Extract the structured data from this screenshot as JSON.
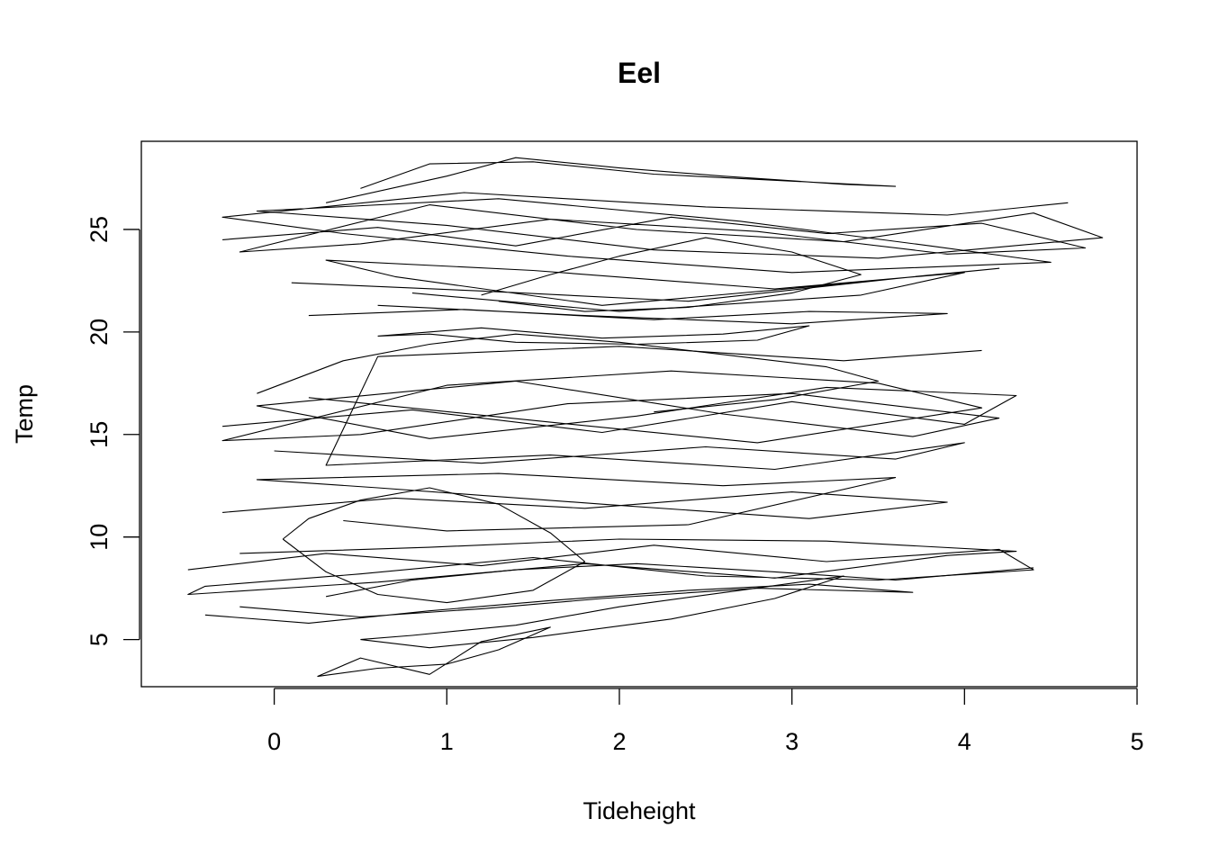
{
  "chart_data": {
    "type": "line",
    "title": "Eel",
    "xlabel": "Tideheight",
    "ylabel": "Temp",
    "xlim": [
      -0.77,
      5.0
    ],
    "ylim": [
      2.7,
      29.3
    ],
    "x_ticks": [
      0,
      1,
      2,
      3,
      4,
      5
    ],
    "y_ticks": [
      5,
      10,
      15,
      20,
      25
    ],
    "grid": false,
    "legend": "none",
    "line_color": "#000000",
    "series": [
      {
        "segments": [
          {
            "x": [
              -0.3,
              0.6,
              1.4,
              2.3,
              3.2,
              4.1,
              4.7,
              3.9,
              2.8,
              1.6,
              0.5,
              -0.2,
              0.9,
              2.1,
              3.3,
              4.4,
              4.8,
              3.5,
              2.2,
              1.0,
              -0.1,
              1.3,
              2.7,
              3.8,
              4.5,
              3.0,
              1.7,
              0.4,
              -0.3,
              1.1,
              2.5,
              3.9,
              4.6
            ],
            "y": [
              24.5,
              25.1,
              24.2,
              25.6,
              24.8,
              25.3,
              24.1,
              23.8,
              24.9,
              25.5,
              24.3,
              23.9,
              26.2,
              25.0,
              24.4,
              25.8,
              24.6,
              23.6,
              24.0,
              25.2,
              25.9,
              26.5,
              25.4,
              24.2,
              23.4,
              22.9,
              23.7,
              24.8,
              25.6,
              26.8,
              26.1,
              25.7,
              26.3
            ]
          },
          {
            "x": [
              0.1,
              1.2,
              2.4,
              3.6,
              4.2,
              3.1,
              1.9,
              0.7,
              0.3,
              1.5,
              2.9,
              4.0,
              3.4,
              2.0,
              0.8
            ],
            "y": [
              22.4,
              22.0,
              21.5,
              22.6,
              23.1,
              22.2,
              21.3,
              22.7,
              23.5,
              23.0,
              22.1,
              22.9,
              21.8,
              21.0,
              21.9
            ]
          },
          {
            "x": [
              0.3,
              1.0,
              1.4,
              2.0,
              2.6,
              3.3,
              3.6,
              2.9,
              2.2,
              1.5,
              0.9,
              0.5
            ],
            "y": [
              26.3,
              27.6,
              28.5,
              28.0,
              27.6,
              27.2,
              27.1,
              27.4,
              27.7,
              28.3,
              28.2,
              27.0
            ]
          },
          {
            "x": [
              0.2,
              1.1,
              2.2,
              3.1,
              3.9,
              3.0,
              1.8,
              0.6
            ],
            "y": [
              20.8,
              21.1,
              20.6,
              21.0,
              20.9,
              20.4,
              20.8,
              21.3
            ]
          },
          {
            "x": [
              -0.3,
              0.8,
              1.9,
              3.0,
              4.0,
              4.3,
              3.2,
              2.1,
              0.9,
              -0.1,
              1.4,
              2.6,
              3.7,
              4.2,
              3.0,
              1.7,
              0.5,
              -0.3,
              1.0,
              2.3,
              3.5,
              4.1,
              2.8,
              1.6,
              0.2
            ],
            "y": [
              15.4,
              16.2,
              15.1,
              16.6,
              15.5,
              16.9,
              17.3,
              15.9,
              14.8,
              16.4,
              17.6,
              16.0,
              14.9,
              15.8,
              17.0,
              16.5,
              15.0,
              14.7,
              17.4,
              18.1,
              17.5,
              16.3,
              14.6,
              15.6,
              16.8
            ]
          },
          {
            "x": [
              0.0,
              1.2,
              2.5,
              3.6,
              4.0,
              2.9,
              1.6,
              0.3,
              0.6,
              2.0,
              3.3,
              4.1
            ],
            "y": [
              14.2,
              13.6,
              14.4,
              13.8,
              14.6,
              13.3,
              14.0,
              13.5,
              18.8,
              19.3,
              18.6,
              19.1
            ]
          },
          {
            "x": [
              -0.3,
              0.7,
              1.8,
              3.0,
              3.9,
              3.1,
              1.9,
              0.6,
              -0.1,
              1.3,
              2.6,
              3.6,
              2.4,
              1.0,
              0.4
            ],
            "y": [
              11.2,
              11.9,
              11.4,
              12.2,
              11.7,
              10.9,
              11.6,
              12.4,
              12.8,
              13.1,
              12.5,
              12.9,
              10.6,
              10.3,
              10.8
            ]
          },
          {
            "x": [
              0.6,
              1.2,
              1.9,
              2.6,
              3.1,
              2.8,
              2.1,
              1.4,
              0.9,
              0.6
            ],
            "y": [
              19.8,
              20.2,
              19.7,
              19.9,
              20.3,
              19.6,
              19.4,
              19.5,
              19.9,
              19.8
            ]
          },
          {
            "x": [
              -0.5,
              0.3,
              1.2,
              2.2,
              3.2,
              4.2,
              4.4,
              3.5,
              2.5,
              1.5,
              0.5,
              -0.4,
              -0.5,
              0.6,
              1.8,
              2.9,
              3.9,
              4.3,
              3.2,
              2.0,
              0.9,
              -0.2
            ],
            "y": [
              8.4,
              9.2,
              8.6,
              9.6,
              8.8,
              9.4,
              8.4,
              7.9,
              8.1,
              9.0,
              8.2,
              7.6,
              7.2,
              7.8,
              8.7,
              8.0,
              9.1,
              9.3,
              9.8,
              9.9,
              9.5,
              9.2
            ]
          },
          {
            "x": [
              -0.4,
              0.2,
              0.9,
              1.6,
              2.4,
              3.1,
              3.7,
              2.8,
              1.9,
              1.2,
              0.5,
              -0.2
            ],
            "y": [
              6.2,
              5.8,
              6.4,
              6.9,
              7.4,
              7.7,
              7.3,
              7.5,
              7.0,
              6.5,
              6.1,
              6.6
            ]
          },
          {
            "x": [
              0.25,
              0.6,
              1.0,
              1.3,
              1.6,
              1.2,
              0.9,
              0.5,
              0.25
            ],
            "y": [
              3.2,
              3.6,
              3.8,
              4.5,
              5.6,
              4.9,
              3.3,
              4.1,
              3.2
            ]
          },
          {
            "x": [
              0.05,
              0.2,
              0.5,
              0.9,
              1.3,
              1.6,
              1.8,
              1.5,
              1.0,
              0.6,
              0.3,
              0.05
            ],
            "y": [
              9.9,
              10.9,
              11.8,
              12.4,
              11.6,
              10.2,
              8.8,
              7.4,
              6.8,
              7.2,
              8.3,
              9.9
            ]
          },
          {
            "x": [
              0.5,
              0.9,
              1.5,
              2.3,
              2.9,
              3.3,
              2.7,
              2.0,
              1.4,
              0.8,
              0.5
            ],
            "y": [
              5.0,
              4.6,
              5.1,
              6.0,
              7.0,
              8.1,
              7.4,
              6.6,
              5.7,
              5.2,
              5.0
            ]
          },
          {
            "x": [
              0.3,
              0.8,
              1.4,
              2.1,
              2.9,
              3.6,
              4.4
            ],
            "y": [
              7.1,
              7.9,
              8.4,
              8.7,
              8.3,
              7.9,
              8.5
            ]
          },
          {
            "x": [
              -0.1,
              0.4,
              0.9,
              1.4,
              2.0,
              2.6,
              3.2,
              3.5,
              2.9,
              2.2
            ],
            "y": [
              17.0,
              18.6,
              19.4,
              19.9,
              19.5,
              18.9,
              18.3,
              17.6,
              16.7,
              16.1
            ]
          },
          {
            "x": [
              1.2,
              1.6,
              2.0,
              2.5,
              3.0,
              3.4,
              3.0,
              2.4,
              1.8,
              1.3
            ],
            "y": [
              21.8,
              22.8,
              23.7,
              24.6,
              23.9,
              22.8,
              21.9,
              21.2,
              21.0,
              21.5
            ]
          }
        ]
      }
    ]
  }
}
